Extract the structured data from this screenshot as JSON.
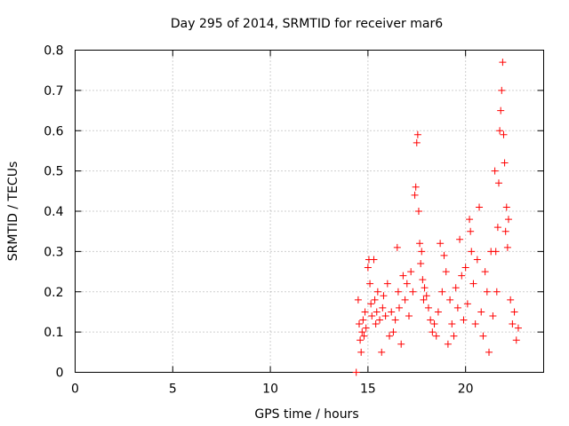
{
  "chart_data": {
    "type": "scatter",
    "title": "Day 295 of 2014, SRMTID for receiver mar6",
    "xlabel": "GPS time / hours",
    "ylabel": "SRMTID / TECUs",
    "xlim": [
      0,
      24
    ],
    "ylim": [
      0,
      0.8
    ],
    "xticks": [
      0,
      5,
      10,
      15,
      20
    ],
    "yticks": [
      0,
      0.1,
      0.2,
      0.3,
      0.4,
      0.5,
      0.6,
      0.7,
      0.8
    ],
    "grid": true,
    "marker": "+",
    "color": "#ff0000",
    "legend": "none",
    "series": [
      {
        "name": "SRMTID",
        "points": [
          [
            14.4,
            0.0
          ],
          [
            14.5,
            0.18
          ],
          [
            14.55,
            0.12
          ],
          [
            14.6,
            0.08
          ],
          [
            14.65,
            0.05
          ],
          [
            14.7,
            0.1
          ],
          [
            14.75,
            0.13
          ],
          [
            14.8,
            0.09
          ],
          [
            14.85,
            0.15
          ],
          [
            14.9,
            0.11
          ],
          [
            15.0,
            0.26
          ],
          [
            15.05,
            0.28
          ],
          [
            15.1,
            0.22
          ],
          [
            15.15,
            0.17
          ],
          [
            15.2,
            0.14
          ],
          [
            15.3,
            0.28
          ],
          [
            15.35,
            0.18
          ],
          [
            15.4,
            0.12
          ],
          [
            15.45,
            0.15
          ],
          [
            15.5,
            0.2
          ],
          [
            15.6,
            0.13
          ],
          [
            15.7,
            0.05
          ],
          [
            15.75,
            0.16
          ],
          [
            15.8,
            0.19
          ],
          [
            15.9,
            0.14
          ],
          [
            16.0,
            0.22
          ],
          [
            16.1,
            0.09
          ],
          [
            16.2,
            0.15
          ],
          [
            16.3,
            0.1
          ],
          [
            16.4,
            0.13
          ],
          [
            16.5,
            0.31
          ],
          [
            16.55,
            0.2
          ],
          [
            16.6,
            0.16
          ],
          [
            16.7,
            0.07
          ],
          [
            16.8,
            0.24
          ],
          [
            16.9,
            0.18
          ],
          [
            17.0,
            0.22
          ],
          [
            17.1,
            0.14
          ],
          [
            17.2,
            0.25
          ],
          [
            17.3,
            0.2
          ],
          [
            17.4,
            0.44
          ],
          [
            17.45,
            0.46
          ],
          [
            17.5,
            0.57
          ],
          [
            17.55,
            0.59
          ],
          [
            17.6,
            0.4
          ],
          [
            17.65,
            0.32
          ],
          [
            17.7,
            0.27
          ],
          [
            17.75,
            0.3
          ],
          [
            17.8,
            0.23
          ],
          [
            17.85,
            0.18
          ],
          [
            17.9,
            0.21
          ],
          [
            18.0,
            0.19
          ],
          [
            18.1,
            0.16
          ],
          [
            18.2,
            0.13
          ],
          [
            18.3,
            0.1
          ],
          [
            18.4,
            0.12
          ],
          [
            18.5,
            0.09
          ],
          [
            18.6,
            0.15
          ],
          [
            18.7,
            0.32
          ],
          [
            18.8,
            0.2
          ],
          [
            18.9,
            0.29
          ],
          [
            19.0,
            0.25
          ],
          [
            19.1,
            0.07
          ],
          [
            19.2,
            0.18
          ],
          [
            19.3,
            0.12
          ],
          [
            19.4,
            0.09
          ],
          [
            19.5,
            0.21
          ],
          [
            19.6,
            0.16
          ],
          [
            19.7,
            0.33
          ],
          [
            19.8,
            0.24
          ],
          [
            19.9,
            0.13
          ],
          [
            20.0,
            0.26
          ],
          [
            20.1,
            0.17
          ],
          [
            20.2,
            0.38
          ],
          [
            20.25,
            0.35
          ],
          [
            20.3,
            0.3
          ],
          [
            20.4,
            0.22
          ],
          [
            20.5,
            0.12
          ],
          [
            20.6,
            0.28
          ],
          [
            20.7,
            0.41
          ],
          [
            20.8,
            0.15
          ],
          [
            20.9,
            0.09
          ],
          [
            21.0,
            0.25
          ],
          [
            21.1,
            0.2
          ],
          [
            21.2,
            0.05
          ],
          [
            21.3,
            0.3
          ],
          [
            21.4,
            0.14
          ],
          [
            21.5,
            0.5
          ],
          [
            21.55,
            0.3
          ],
          [
            21.6,
            0.2
          ],
          [
            21.65,
            0.36
          ],
          [
            21.7,
            0.47
          ],
          [
            21.75,
            0.6
          ],
          [
            21.8,
            0.65
          ],
          [
            21.85,
            0.7
          ],
          [
            21.9,
            0.77
          ],
          [
            21.95,
            0.59
          ],
          [
            22.0,
            0.52
          ],
          [
            22.05,
            0.35
          ],
          [
            22.1,
            0.41
          ],
          [
            22.15,
            0.31
          ],
          [
            22.2,
            0.38
          ],
          [
            22.3,
            0.18
          ],
          [
            22.4,
            0.12
          ],
          [
            22.5,
            0.15
          ],
          [
            22.6,
            0.08
          ],
          [
            22.7,
            0.11
          ]
        ]
      }
    ]
  }
}
